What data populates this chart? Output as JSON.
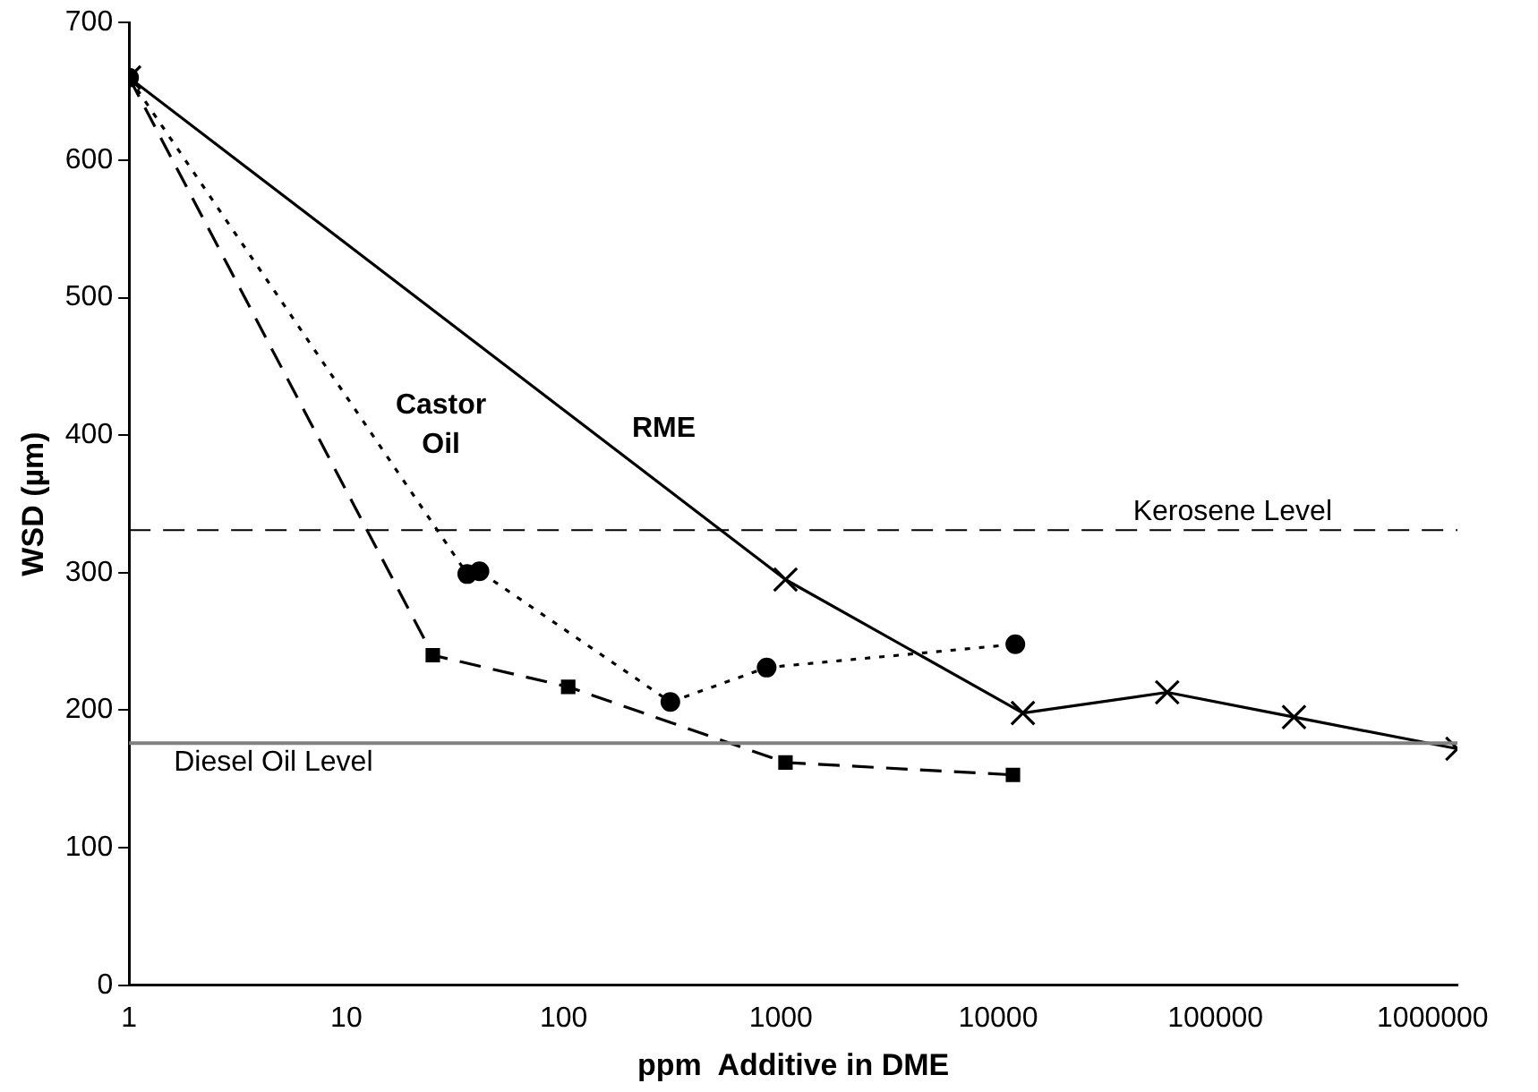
{
  "chart_data": {
    "type": "line",
    "xlabel": "ppm  Additive in DME",
    "ylabel": "WSD (µm)",
    "log": "x",
    "xlim": [
      1,
      1300000
    ],
    "xticks": [
      1,
      10,
      100,
      1000,
      10000,
      100000,
      1000000
    ],
    "ylim": [
      0,
      700
    ],
    "yticks": [
      0,
      100,
      200,
      300,
      400,
      500,
      600,
      700
    ],
    "grid": false,
    "legend": false,
    "series": [
      {
        "name": "RME",
        "color": "#000000",
        "marker": "cross",
        "line_style": "solid",
        "x": [
          1,
          1050,
          13000,
          60000,
          230000,
          1300000
        ],
        "values": [
          660,
          295,
          198,
          213,
          195,
          172
        ]
      },
      {
        "name": "Castor Oil",
        "color": "#000000",
        "marker": "circle",
        "line_style": "dotted",
        "x": [
          1,
          36,
          41,
          310,
          860,
          12000
        ],
        "values": [
          660,
          299,
          301,
          206,
          231,
          248
        ]
      },
      {
        "color": "#000000",
        "marker": "square",
        "line_style": "dashed",
        "x": [
          1,
          25,
          105,
          1050,
          11700
        ],
        "values": [
          660,
          240,
          217,
          162,
          153
        ]
      }
    ],
    "ref_lines": [
      {
        "axis": "y",
        "value": 331,
        "label": "Kerosene Level",
        "color": "#000000",
        "line_style": "dashed"
      },
      {
        "axis": "y",
        "value": 176,
        "label": "Diesel Oil Level",
        "color": "#808080",
        "line_style": "solid"
      }
    ]
  }
}
